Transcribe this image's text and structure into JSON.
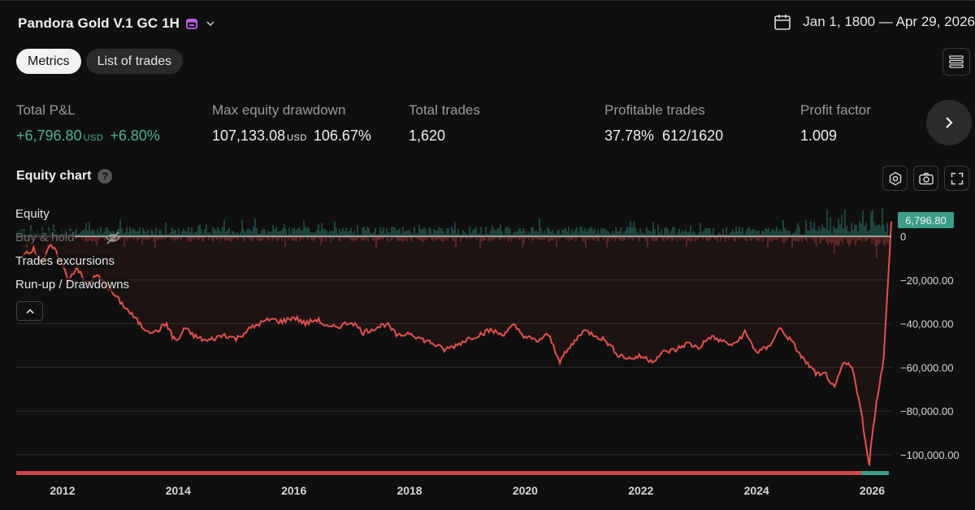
{
  "header": {
    "title": "Pandora Gold V.1 GC 1H",
    "date_range": "Jan 1, 1800 — Apr 29, 2026"
  },
  "tabs": [
    {
      "label": "Metrics",
      "active": true
    },
    {
      "label": "List of trades",
      "active": false
    }
  ],
  "metrics": {
    "total_pnl": {
      "label": "Total P&L",
      "value": "+6,796.80",
      "currency": "USD",
      "percent": "+6.80%"
    },
    "max_drawdown": {
      "label": "Max equity drawdown",
      "value": "107,133.08",
      "currency": "USD",
      "percent": "106.67%"
    },
    "total_trades": {
      "label": "Total trades",
      "value": "1,620"
    },
    "profitable_trades": {
      "label": "Profitable trades",
      "value": "37.78%  612/1620"
    },
    "profit_factor": {
      "label": "Profit factor",
      "value": "1.009"
    }
  },
  "equity_chart": {
    "title": "Equity chart",
    "help_icon": "?",
    "legend": [
      "Equity",
      "Buy & hold",
      "Trades excursions",
      "Run-up / Drawdowns"
    ]
  },
  "colors": {
    "background": "#0f0f0f",
    "positive": "#4fb28f",
    "equity_line": "#e0524f",
    "runup": "#3a9e8a",
    "drawdown": "#c9474a"
  },
  "chart_data": {
    "type": "line",
    "series": [
      {
        "name": "Equity",
        "x": [
          2011.3,
          2011.5,
          2011.65,
          2011.8,
          2011.95,
          2012.1,
          2012.25,
          2012.4,
          2012.6,
          2012.8,
          2013.0,
          2013.2,
          2013.4,
          2013.6,
          2013.8,
          2013.9,
          2014.0,
          2014.1,
          2014.3,
          2014.5,
          2014.8,
          2015.0,
          2015.2,
          2015.4,
          2015.6,
          2015.8,
          2016.0,
          2016.2,
          2016.4,
          2016.6,
          2016.8,
          2017.0,
          2017.2,
          2017.4,
          2017.6,
          2017.8,
          2018.0,
          2018.2,
          2018.4,
          2018.6,
          2018.8,
          2019.0,
          2019.2,
          2019.4,
          2019.6,
          2019.8,
          2020.0,
          2020.2,
          2020.4,
          2020.6,
          2020.8,
          2021.0,
          2021.2,
          2021.4,
          2021.6,
          2021.8,
          2022.0,
          2022.2,
          2022.4,
          2022.6,
          2022.8,
          2023.0,
          2023.2,
          2023.4,
          2023.6,
          2023.8,
          2024.0,
          2024.2,
          2024.4,
          2024.6,
          2024.8,
          2025.0,
          2025.1,
          2025.2,
          2025.35,
          2025.5,
          2025.65,
          2025.8,
          2025.9,
          2025.95,
          2026.0,
          2026.1,
          2026.2,
          2026.3,
          2026.33
        ],
        "values": [
          -8000,
          -6000,
          -12000,
          -4000,
          -10000,
          -20000,
          -14000,
          -22000,
          -18000,
          -24000,
          -30000,
          -36000,
          -42000,
          -44000,
          -40000,
          -46000,
          -48000,
          -42000,
          -46000,
          -48000,
          -45000,
          -47000,
          -43000,
          -40000,
          -38000,
          -39000,
          -37000,
          -40000,
          -38000,
          -42000,
          -41000,
          -39000,
          -44000,
          -42000,
          -40000,
          -46000,
          -44000,
          -47000,
          -49000,
          -52000,
          -50000,
          -47000,
          -45000,
          -43000,
          -45000,
          -41000,
          -46000,
          -48000,
          -45000,
          -57000,
          -50000,
          -43000,
          -45000,
          -48000,
          -54000,
          -56000,
          -55000,
          -57000,
          -53000,
          -52000,
          -49000,
          -51000,
          -46000,
          -48000,
          -50000,
          -44000,
          -53000,
          -51000,
          -42000,
          -48000,
          -56000,
          -62000,
          -64000,
          -63000,
          -70000,
          -58000,
          -60000,
          -78000,
          -98000,
          -105000,
          -90000,
          -72000,
          -55000,
          -8000,
          6796.8
        ]
      }
    ],
    "x_ticks": [
      "2012",
      "2014",
      "2016",
      "2018",
      "2020",
      "2022",
      "2024",
      "2026"
    ],
    "y_ticks": [
      0,
      -20000,
      -40000,
      -60000,
      -80000,
      -100000
    ],
    "y_tick_labels": [
      "0",
      "−20,000.00",
      "−40,000.00",
      "−60,000.00",
      "−80,000.00",
      "−100,000.00"
    ],
    "last_value_label": "6,796.80",
    "xlim": [
      2011.2,
      2026.33
    ],
    "ylim": [
      -107000,
      10000
    ],
    "grid": true
  }
}
